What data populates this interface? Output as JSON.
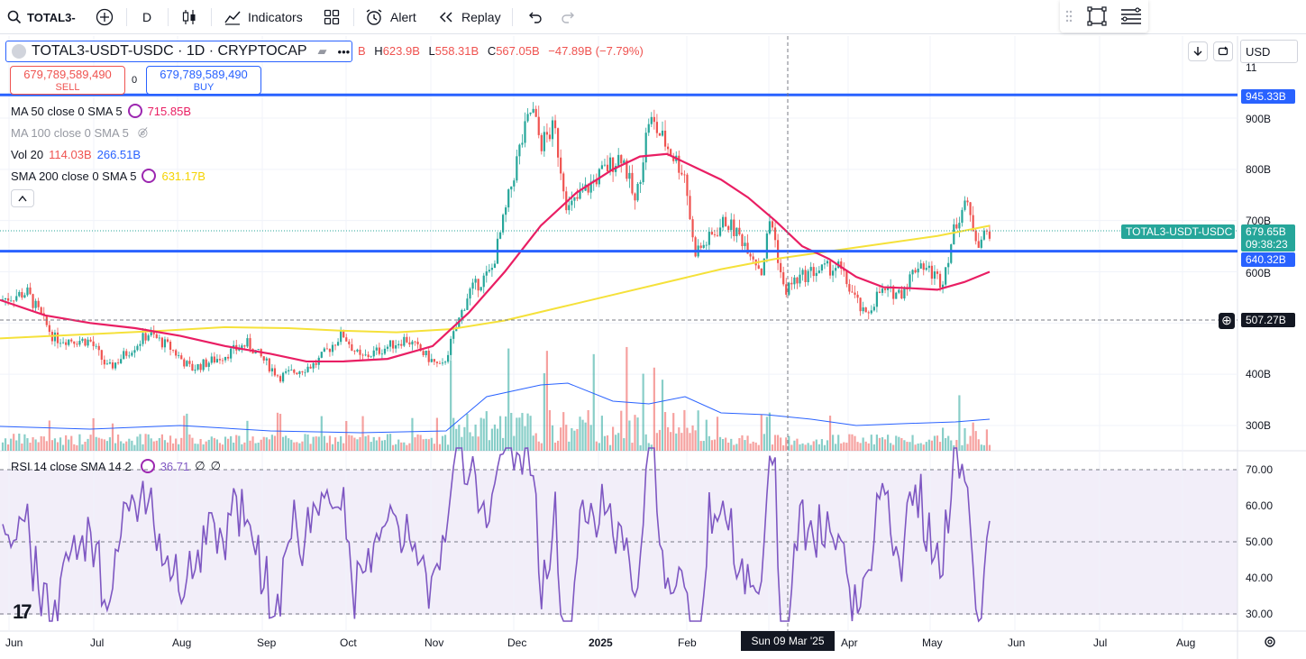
{
  "toolbar": {
    "symbol": "TOTAL3-",
    "interval": "D",
    "indicators_label": "Indicators",
    "alert_label": "Alert",
    "replay_label": "Replay"
  },
  "header": {
    "title": "TOTAL3-USDT-USDC · 1D · CRYPTOCAP",
    "ohlc": {
      "h_key": "H",
      "h": "623.9B",
      "l_key": "L",
      "l": "558.31B",
      "c_key": "C",
      "c": "567.05B",
      "change": "−47.89B (−7.79%)",
      "o_key": "B"
    },
    "currency": "USD"
  },
  "trade": {
    "sell_price": "679,789,589,490",
    "sell_label": "SELL",
    "spread": "0",
    "buy_price": "679,789,589,490",
    "buy_label": "BUY"
  },
  "indicators": [
    {
      "label": "MA 50 close 0 SMA 5",
      "value": "715.85B",
      "color": "#e91e63"
    },
    {
      "label": "MA 100 close 0 SMA 5",
      "value": "",
      "color": "#9598a1"
    },
    {
      "label": "Vol 20",
      "value": "114.03B",
      "value2": "266.51B"
    },
    {
      "label": "SMA 200 close 0 SMA 5",
      "value": "631.17B",
      "color": "#f5d300"
    }
  ],
  "rsi": {
    "label": "RSI 14 close SMA 14 2",
    "value": "36.71",
    "extra1": "∅",
    "extra2": "∅"
  },
  "price_axis": {
    "labels": [
      "900B",
      "800B",
      "700B",
      "600B",
      "400B",
      "300B"
    ],
    "top_mark": "945.33B",
    "current_symbol_tag": "TOTAL3-USDT-USDC",
    "current_price": "679.65B",
    "countdown": "09:38:23",
    "level_mark": "640.32B",
    "crosshair_price": "507.27B"
  },
  "rsi_axis": {
    "labels": [
      "70.00",
      "60.00",
      "50.00",
      "40.00",
      "30.00"
    ]
  },
  "time_axis": {
    "labels": [
      "Jun",
      "Jul",
      "Aug",
      "Sep",
      "Oct",
      "Nov",
      "Dec",
      "2025",
      "Feb",
      "Apr",
      "May",
      "Jun",
      "Jul",
      "Aug"
    ],
    "crosshair_date": "Sun 09 Mar '25"
  },
  "colors": {
    "up": "#26a69a",
    "down": "#ef5350",
    "ma50": "#e91e63",
    "sma200": "#f5e13a",
    "hline": "#2962ff",
    "rsi": "#7e57c2",
    "vol_ma": "#2962ff"
  },
  "chart_data": {
    "type": "candlestick",
    "symbol": "TOTAL3-USDT-USDC",
    "interval": "1D",
    "horizontal_levels": [
      945.33,
      640.32
    ],
    "close_series_approx": [
      {
        "x": "Jun",
        "y": 545
      },
      {
        "x": "Jul",
        "y": 470
      },
      {
        "x": "Aug",
        "y": 460
      },
      {
        "x": "Sep",
        "y": 420
      },
      {
        "x": "Oct",
        "y": 470
      },
      {
        "x": "Nov",
        "y": 490
      },
      {
        "x": "Dec",
        "y": 920
      },
      {
        "x": "2025",
        "y": 780
      },
      {
        "x": "Feb",
        "y": 760
      },
      {
        "x": "Mar",
        "y": 620
      },
      {
        "x": "Apr",
        "y": 520
      },
      {
        "x": "May",
        "y": 620
      },
      {
        "x": "May-end",
        "y": 680
      }
    ],
    "rsi_levels": [
      70,
      50,
      30
    ]
  }
}
